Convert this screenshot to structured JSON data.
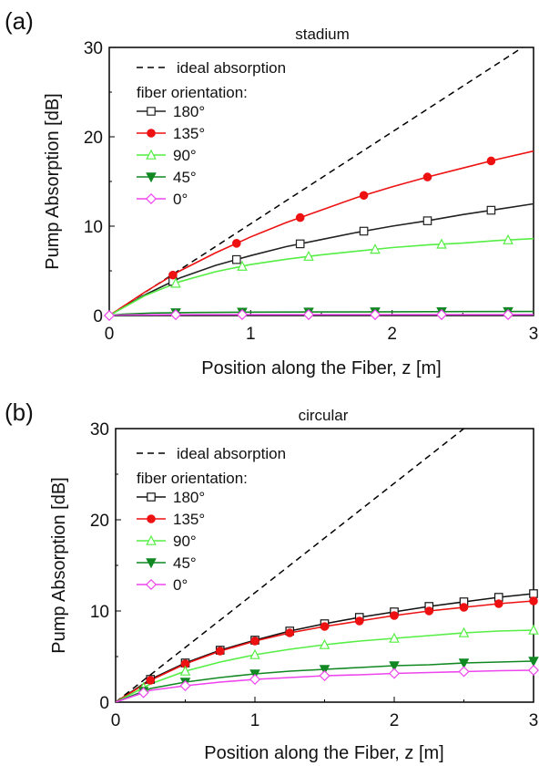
{
  "chart_data": [
    {
      "panel_label": "(a)",
      "type": "line",
      "title": "stadium",
      "xlabel": "Position along the Fiber, z [m]",
      "ylabel": "Pump Absorption [dB]",
      "xlim": [
        0,
        3
      ],
      "ylim": [
        0,
        30
      ],
      "xticks": [
        "0",
        "1",
        "2",
        "3"
      ],
      "yticks": [
        "0",
        "10",
        "20",
        "30"
      ],
      "grid": false,
      "legend_placement": "top-left",
      "legend_header": "fiber orientation:",
      "ideal": {
        "name": "ideal absorption",
        "color": "#000000",
        "style": "dashed",
        "x": [
          0,
          3
        ],
        "y": [
          0,
          30.8
        ]
      },
      "series": [
        {
          "name": "180°",
          "color": "#222222",
          "marker": "open-square",
          "x": [
            0,
            0.25,
            0.5,
            0.75,
            1.0,
            1.25,
            1.5,
            1.75,
            2.0,
            2.25,
            2.5,
            2.75,
            3.0
          ],
          "y": [
            0,
            2.3,
            4.2,
            5.6,
            6.7,
            7.7,
            8.5,
            9.3,
            10.0,
            10.6,
            11.3,
            11.9,
            12.5
          ],
          "markers_x": [
            0.45,
            0.9,
            1.35,
            1.8,
            2.25,
            2.7
          ]
        },
        {
          "name": "135°",
          "color": "#ee1111",
          "marker": "filled-circle",
          "x": [
            0,
            0.25,
            0.5,
            0.75,
            1.0,
            1.25,
            1.5,
            1.75,
            2.0,
            2.25,
            2.5,
            2.75,
            3.0
          ],
          "y": [
            0,
            2.6,
            5.0,
            7.0,
            8.8,
            10.4,
            11.8,
            13.2,
            14.4,
            15.5,
            16.5,
            17.5,
            18.4
          ],
          "markers_x": [
            0.45,
            0.9,
            1.35,
            1.8,
            2.25,
            2.7
          ]
        },
        {
          "name": "90°",
          "color": "#55ee44",
          "marker": "open-triangle",
          "x": [
            0,
            0.25,
            0.5,
            0.75,
            1.0,
            1.25,
            1.5,
            1.75,
            2.0,
            2.25,
            2.5,
            2.75,
            3.0
          ],
          "y": [
            0,
            2.2,
            3.8,
            4.9,
            5.7,
            6.3,
            6.8,
            7.2,
            7.6,
            7.9,
            8.1,
            8.4,
            8.6
          ],
          "markers_x": [
            0.47,
            0.94,
            1.41,
            1.88,
            2.35,
            2.82
          ]
        },
        {
          "name": "45°",
          "color": "#118822",
          "marker": "filled-triangle-down",
          "x": [
            0,
            0.1,
            0.3,
            0.6,
            1.0,
            1.5,
            2.0,
            2.5,
            3.0
          ],
          "y": [
            0,
            0.15,
            0.28,
            0.34,
            0.38,
            0.4,
            0.42,
            0.44,
            0.45
          ],
          "markers_x": [
            0.47,
            0.94,
            1.41,
            1.88,
            2.35,
            2.82
          ]
        },
        {
          "name": "0°",
          "color": "#ee44ee",
          "marker": "open-diamond",
          "x": [
            0,
            0.1,
            0.3,
            0.6,
            1.0,
            1.5,
            2.0,
            2.5,
            3.0
          ],
          "y": [
            0,
            0.05,
            0.08,
            0.1,
            0.1,
            0.1,
            0.1,
            0.1,
            0.1
          ],
          "markers_x": [
            0,
            0.47,
            0.94,
            1.41,
            1.88,
            2.35,
            2.82
          ]
        }
      ]
    },
    {
      "panel_label": "(b)",
      "type": "line",
      "title": "circular",
      "xlabel": "Position along the Fiber, z [m]",
      "ylabel": "Pump Absorption [dB]",
      "xlim": [
        0,
        3
      ],
      "ylim": [
        0,
        30
      ],
      "xticks": [
        "0",
        "1",
        "2",
        "3"
      ],
      "yticks": [
        "0",
        "10",
        "20",
        "30"
      ],
      "grid": false,
      "legend_placement": "top-left",
      "legend_header": "fiber orientation:",
      "ideal": {
        "name": "ideal absorption",
        "color": "#000000",
        "style": "dashed",
        "x": [
          0,
          3
        ],
        "y": [
          0,
          36
        ]
      },
      "series": [
        {
          "name": "180°",
          "color": "#111111",
          "marker": "open-square",
          "x": [
            0,
            0.25,
            0.5,
            0.75,
            1.0,
            1.25,
            1.5,
            1.75,
            2.0,
            2.25,
            2.5,
            2.75,
            3.0
          ],
          "y": [
            0,
            2.5,
            4.3,
            5.7,
            6.8,
            7.8,
            8.6,
            9.3,
            9.9,
            10.5,
            11.0,
            11.5,
            11.9
          ],
          "markers_x": [
            0.25,
            0.5,
            0.75,
            1.0,
            1.25,
            1.5,
            1.75,
            2.0,
            2.25,
            2.5,
            2.75,
            3.0
          ]
        },
        {
          "name": "135°",
          "color": "#ee1111",
          "marker": "filled-circle",
          "x": [
            0,
            0.25,
            0.5,
            0.75,
            1.0,
            1.25,
            1.5,
            1.75,
            2.0,
            2.25,
            2.5,
            2.75,
            3.0
          ],
          "y": [
            0,
            2.4,
            4.2,
            5.6,
            6.7,
            7.6,
            8.3,
            8.9,
            9.5,
            10.0,
            10.4,
            10.8,
            11.1
          ],
          "markers_x": [
            0.25,
            0.5,
            0.75,
            1.0,
            1.25,
            1.5,
            1.75,
            2.0,
            2.25,
            2.5,
            2.75,
            3.0
          ]
        },
        {
          "name": "90°",
          "color": "#55ee44",
          "marker": "open-triangle",
          "x": [
            0,
            0.25,
            0.5,
            0.75,
            1.0,
            1.25,
            1.5,
            1.75,
            2.0,
            2.25,
            2.5,
            2.75,
            3.0
          ],
          "y": [
            0,
            2.0,
            3.4,
            4.4,
            5.2,
            5.8,
            6.3,
            6.7,
            7.0,
            7.3,
            7.6,
            7.8,
            7.9
          ],
          "markers_x": [
            0.2,
            0.5,
            1.0,
            1.5,
            2.0,
            2.5,
            3.0
          ]
        },
        {
          "name": "45°",
          "color": "#118822",
          "marker": "filled-triangle-down",
          "x": [
            0,
            0.25,
            0.5,
            0.75,
            1.0,
            1.25,
            1.5,
            1.75,
            2.0,
            2.25,
            2.5,
            2.75,
            3.0
          ],
          "y": [
            0,
            1.5,
            2.2,
            2.7,
            3.1,
            3.4,
            3.6,
            3.8,
            4.0,
            4.1,
            4.3,
            4.4,
            4.5
          ],
          "markers_x": [
            0.2,
            0.5,
            1.0,
            1.5,
            2.0,
            2.5,
            3.0
          ]
        },
        {
          "name": "0°",
          "color": "#ee44ee",
          "marker": "open-diamond",
          "x": [
            0,
            0.25,
            0.5,
            0.75,
            1.0,
            1.25,
            1.5,
            1.75,
            2.0,
            2.25,
            2.5,
            2.75,
            3.0
          ],
          "y": [
            0,
            1.3,
            1.8,
            2.2,
            2.5,
            2.7,
            2.9,
            3.0,
            3.15,
            3.25,
            3.35,
            3.45,
            3.5
          ],
          "markers_x": [
            0.2,
            0.5,
            1.0,
            1.5,
            2.0,
            2.5,
            3.0
          ]
        }
      ]
    }
  ]
}
